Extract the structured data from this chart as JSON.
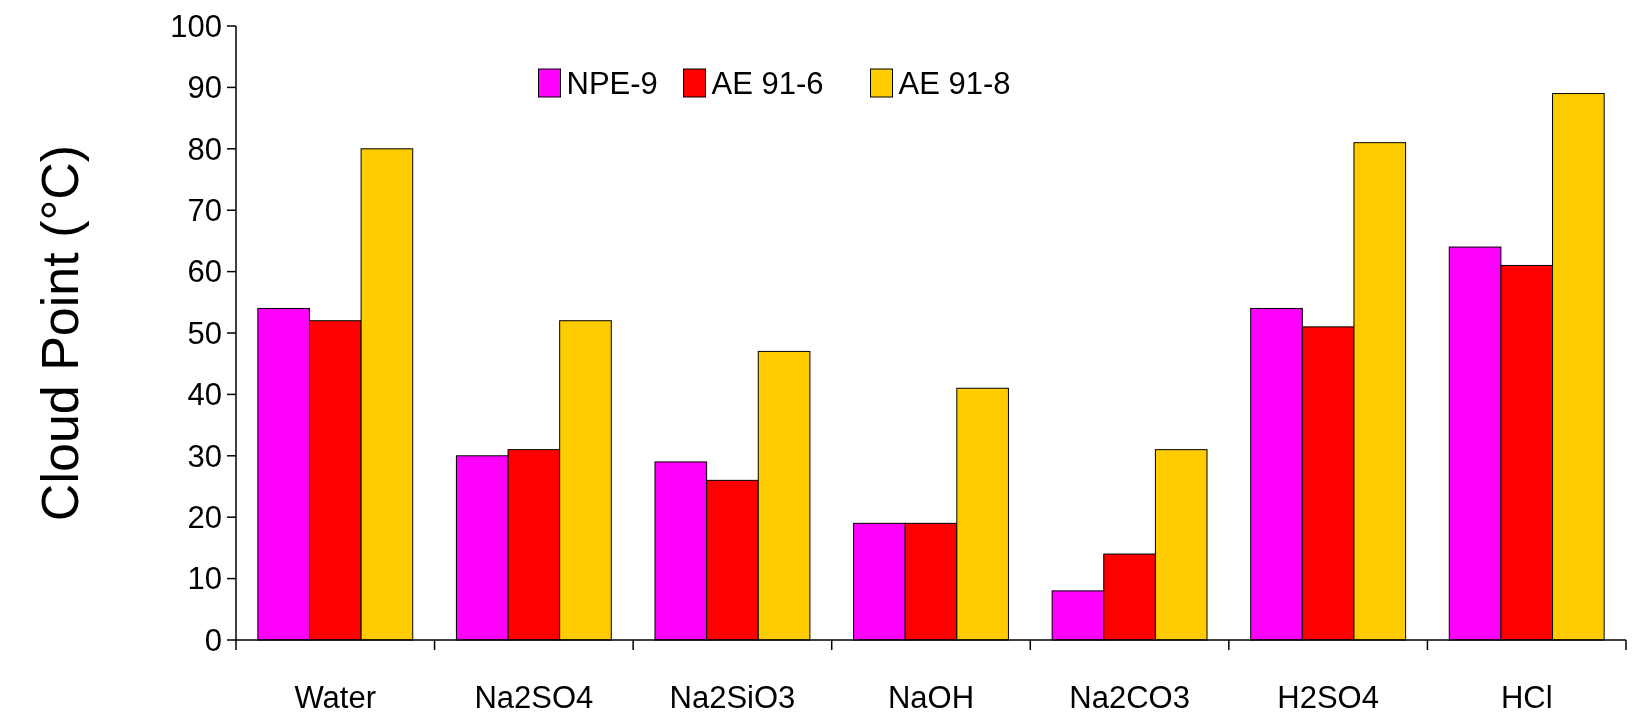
{
  "chart_data": {
    "type": "bar",
    "ylabel": "Cloud Point (°C)",
    "categories": [
      "Water",
      "Na2SO4",
      "Na2SiO3",
      "NaOH",
      "Na2CO3",
      "H2SO4",
      "HCl"
    ],
    "series": [
      {
        "name": "NPE-9",
        "color": "#ff00ff",
        "values": [
          54,
          30,
          29,
          19,
          8,
          54,
          64
        ]
      },
      {
        "name": "AE 91-6",
        "color": "#ff0000",
        "values": [
          52,
          31,
          26,
          19,
          14,
          51,
          61
        ]
      },
      {
        "name": "AE 91-8",
        "color": "#ffcc00",
        "values": [
          80,
          52,
          47,
          41,
          31,
          81,
          89
        ]
      }
    ],
    "ylim": [
      0,
      100
    ],
    "yticks": [
      0,
      10,
      20,
      30,
      40,
      50,
      60,
      70,
      80,
      90,
      100
    ],
    "grid": false,
    "legend": "top"
  }
}
